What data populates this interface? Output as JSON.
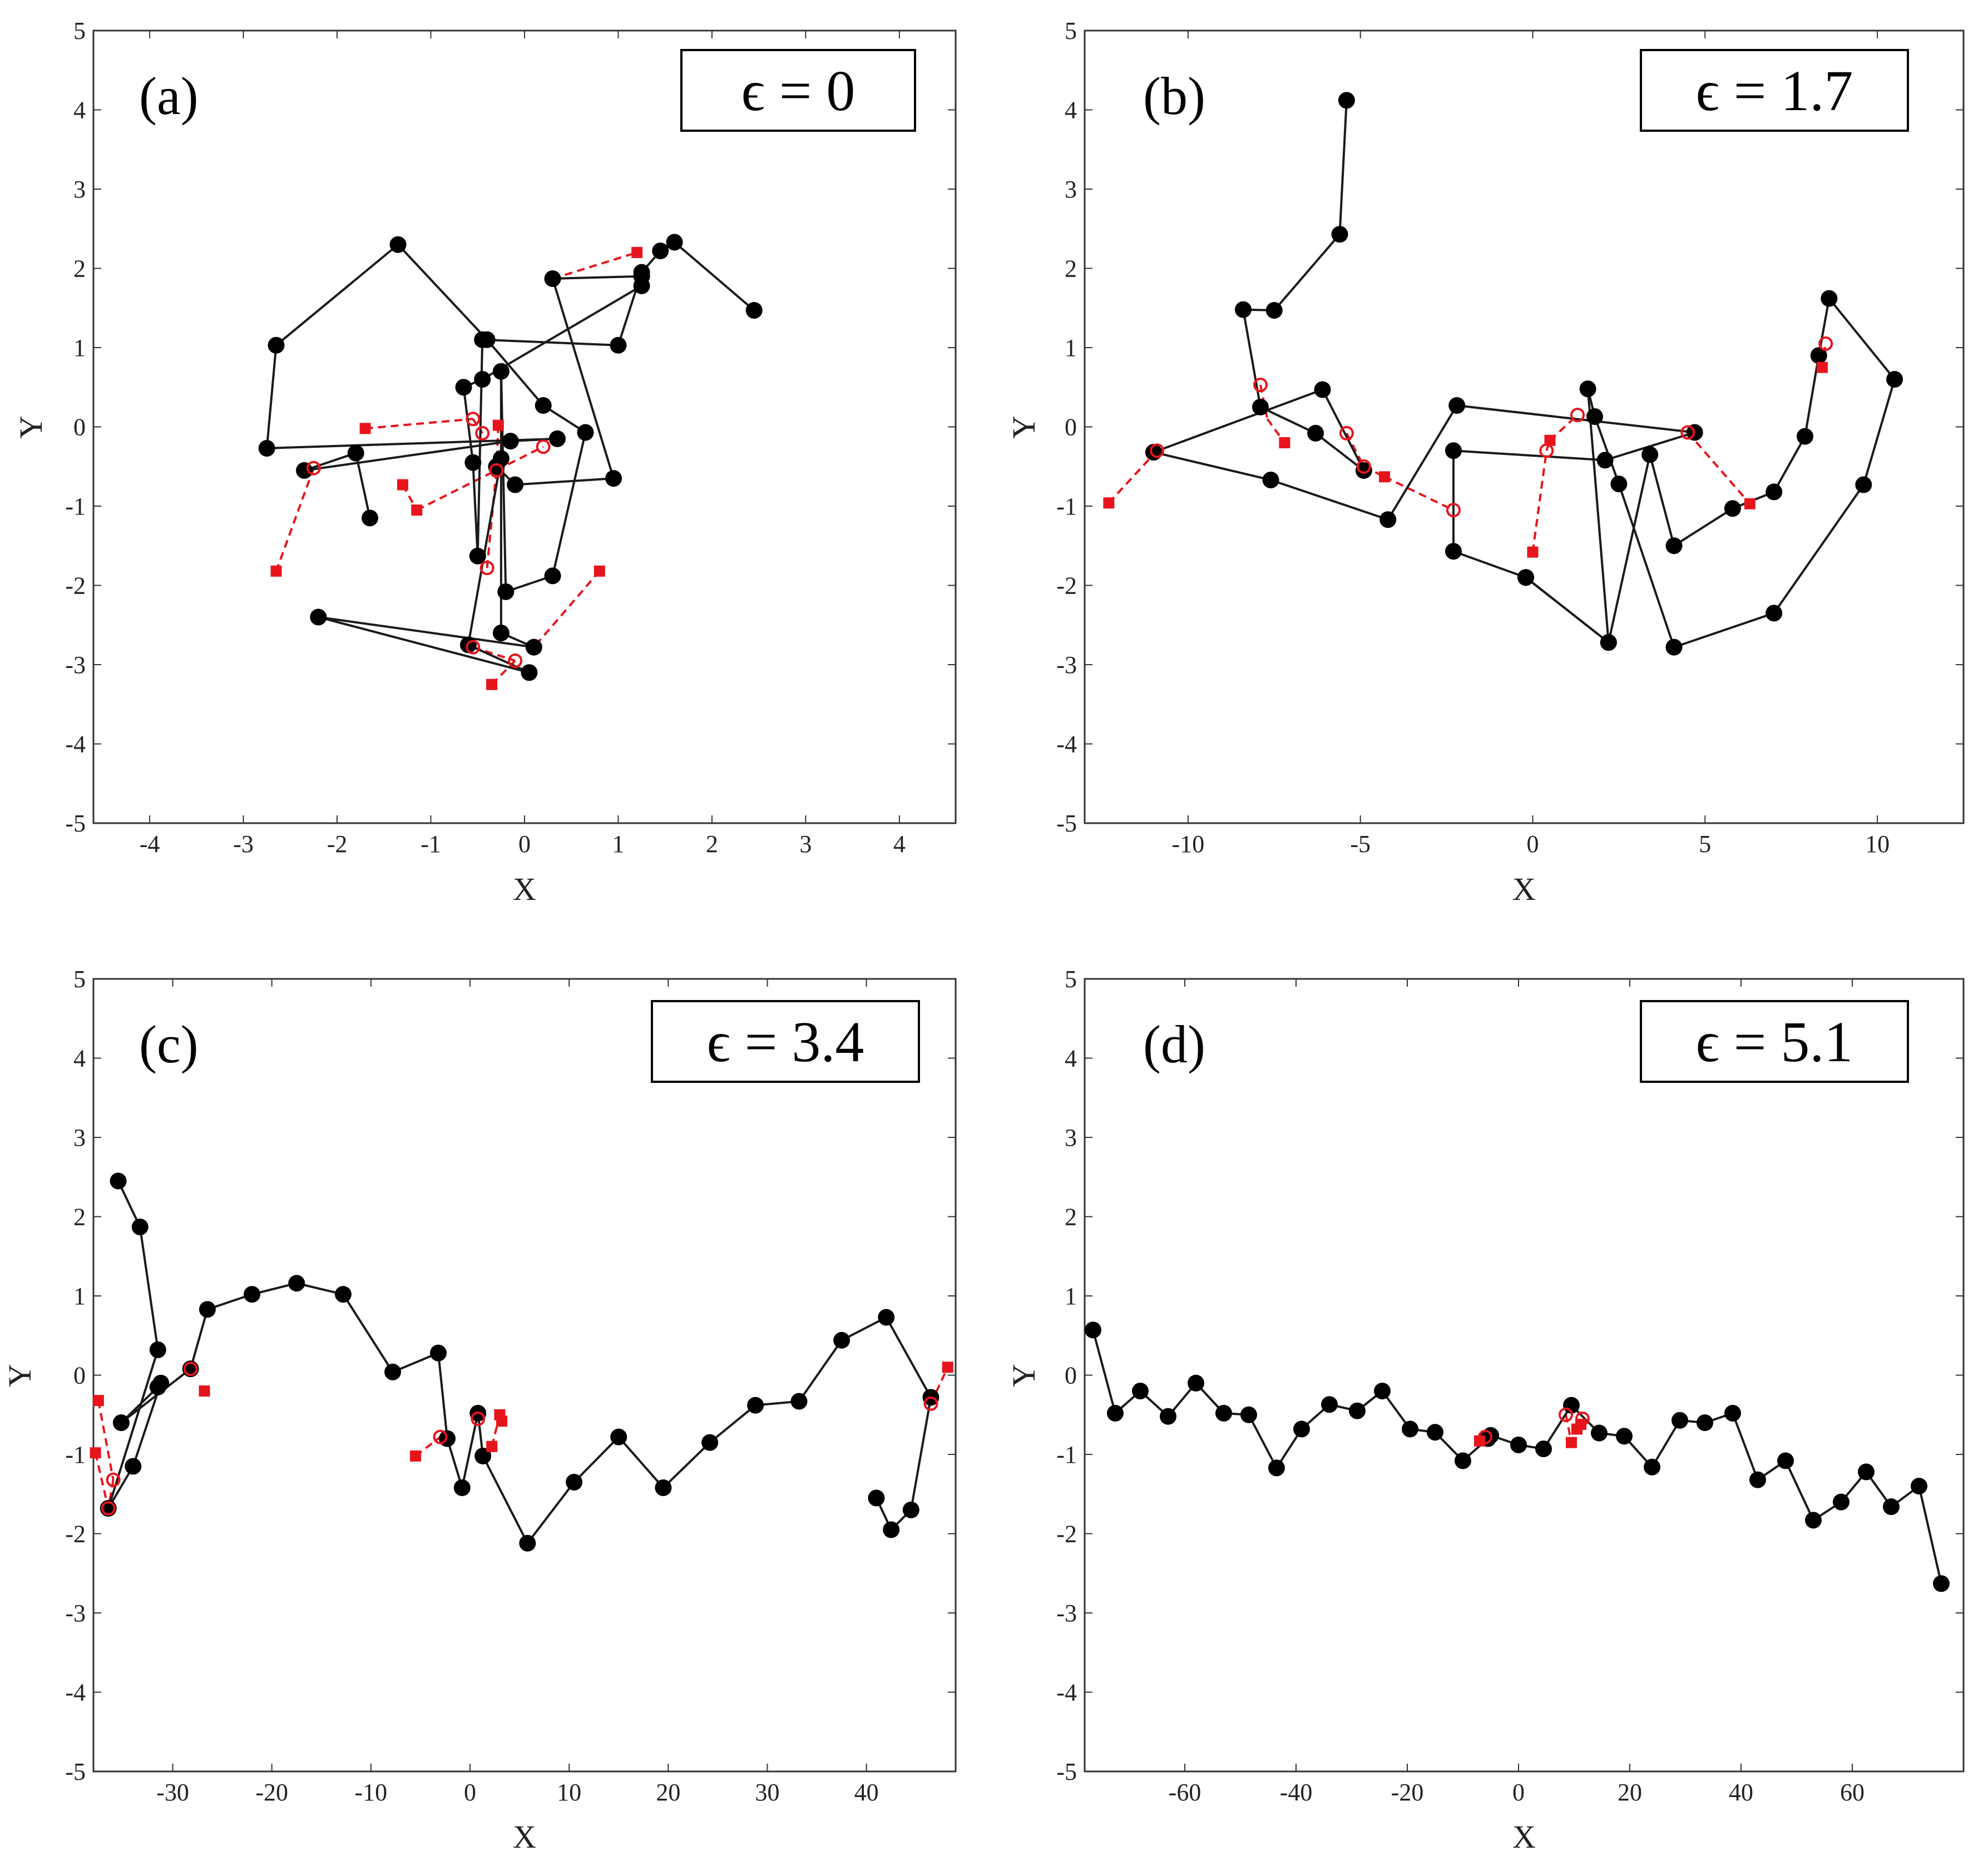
{
  "chart_data": [
    {
      "id": "a",
      "type": "scatter",
      "panel_label": "(a)",
      "epsilon_label": "ϵ = 0",
      "xlabel": "X",
      "ylabel": "Y",
      "xlim": [
        -4.6,
        4.6
      ],
      "ylim": [
        -5,
        5
      ],
      "xticks": [
        -4,
        -3,
        -2,
        -1,
        0,
        1,
        2,
        3,
        4
      ],
      "yticks": [
        -5,
        -4,
        -3,
        -2,
        -1,
        0,
        1,
        2,
        3,
        4,
        5
      ],
      "black_chain": [
        [
          -1.65,
          -1.15
        ],
        [
          -1.8,
          -0.33
        ],
        [
          -2.35,
          -0.55
        ],
        [
          -0.15,
          -0.18
        ],
        [
          0.35,
          -0.15
        ],
        [
          -2.75,
          -0.27
        ],
        [
          -2.65,
          1.03
        ],
        [
          -1.35,
          2.3
        ],
        [
          -0.4,
          1.1
        ],
        [
          0.2,
          0.27
        ],
        [
          0.65,
          -0.07
        ],
        [
          0.3,
          -1.88
        ],
        [
          -0.2,
          -2.08
        ],
        [
          -0.25,
          0.7
        ],
        [
          -0.25,
          -2.6
        ],
        [
          0.1,
          -2.78
        ],
        [
          -2.2,
          -2.4
        ],
        [
          0.05,
          -3.1
        ],
        [
          -0.6,
          -2.75
        ],
        [
          -0.25,
          -0.4
        ],
        [
          -0.3,
          -0.5
        ],
        [
          -0.1,
          -0.73
        ],
        [
          0.95,
          -0.65
        ],
        [
          0.3,
          1.87
        ],
        [
          1.25,
          1.9
        ],
        [
          1.25,
          1.78
        ],
        [
          -0.45,
          0.6
        ],
        [
          -0.65,
          0.5
        ],
        [
          -0.55,
          -0.45
        ],
        [
          -0.5,
          -1.63
        ],
        [
          -0.45,
          1.1
        ],
        [
          1.0,
          1.03
        ],
        [
          1.25,
          1.95
        ],
        [
          1.45,
          2.22
        ],
        [
          1.6,
          2.33
        ],
        [
          2.45,
          1.47
        ]
      ],
      "red_filled": [
        [
          1.2,
          2.2
        ],
        [
          -1.7,
          -0.02
        ],
        [
          -0.28,
          0.02
        ],
        [
          -1.3,
          -0.73
        ],
        [
          -1.15,
          -1.05
        ],
        [
          -2.65,
          -1.82
        ],
        [
          0.8,
          -1.82
        ],
        [
          -0.35,
          -3.25
        ]
      ],
      "red_open": [
        [
          -0.55,
          0.1
        ],
        [
          -0.45,
          -0.08
        ],
        [
          0.2,
          -0.25
        ],
        [
          -2.25,
          -0.52
        ],
        [
          -0.3,
          -0.55
        ],
        [
          -0.4,
          -1.78
        ],
        [
          -0.1,
          -2.95
        ],
        [
          -0.55,
          -2.78
        ]
      ],
      "red_links": [
        [
          [
            0.3,
            1.87
          ],
          [
            1.2,
            2.2
          ]
        ],
        [
          [
            -1.7,
            -0.02
          ],
          [
            -0.55,
            0.1
          ]
        ],
        [
          [
            -0.55,
            0.1
          ],
          [
            -0.45,
            -0.08
          ]
        ],
        [
          [
            -0.28,
            0.02
          ],
          [
            -0.3,
            -0.55
          ]
        ],
        [
          [
            -2.25,
            -0.52
          ],
          [
            -2.65,
            -1.82
          ]
        ],
        [
          [
            -1.3,
            -0.73
          ],
          [
            -1.15,
            -1.05
          ]
        ],
        [
          [
            -1.15,
            -1.05
          ],
          [
            0.2,
            -0.25
          ]
        ],
        [
          [
            -0.4,
            -1.78
          ],
          [
            -0.3,
            -0.55
          ]
        ],
        [
          [
            0.8,
            -1.82
          ],
          [
            0.1,
            -2.78
          ]
        ],
        [
          [
            -0.1,
            -2.95
          ],
          [
            -0.35,
            -3.25
          ]
        ],
        [
          [
            -0.55,
            -2.78
          ],
          [
            -0.1,
            -2.95
          ]
        ]
      ]
    },
    {
      "id": "b",
      "type": "scatter",
      "panel_label": "(b)",
      "epsilon_label": "ϵ = 1.7",
      "xlabel": "X",
      "ylabel": "Y",
      "xlim": [
        -13,
        12.5
      ],
      "ylim": [
        -5,
        5
      ],
      "xticks": [
        -10,
        -5,
        0,
        5,
        10
      ],
      "yticks": [
        -5,
        -4,
        -3,
        -2,
        -1,
        0,
        1,
        2,
        3,
        4,
        5
      ],
      "black_chain": [
        [
          -5.4,
          4.12
        ],
        [
          -5.6,
          2.43
        ],
        [
          -7.5,
          1.47
        ],
        [
          -8.4,
          1.48
        ],
        [
          -7.9,
          0.25
        ],
        [
          -6.3,
          -0.08
        ],
        [
          -4.9,
          -0.55
        ],
        [
          -6.1,
          0.47
        ],
        [
          -11.0,
          -0.32
        ],
        [
          -7.6,
          -0.67
        ],
        [
          -4.2,
          -1.17
        ],
        [
          -2.2,
          0.27
        ],
        [
          4.7,
          -0.07
        ],
        [
          2.1,
          -0.42
        ],
        [
          -2.3,
          -0.3
        ],
        [
          -2.3,
          -1.57
        ],
        [
          -0.2,
          -1.9
        ],
        [
          2.2,
          -2.72
        ],
        [
          1.6,
          0.48
        ],
        [
          1.8,
          0.13
        ],
        [
          2.5,
          -0.72
        ],
        [
          4.1,
          -2.78
        ],
        [
          7.0,
          -2.35
        ],
        [
          9.6,
          -0.73
        ],
        [
          10.5,
          0.6
        ],
        [
          8.6,
          1.62
        ],
        [
          8.3,
          0.9
        ],
        [
          7.9,
          -0.12
        ],
        [
          7.0,
          -0.82
        ],
        [
          5.8,
          -1.03
        ],
        [
          4.1,
          -1.5
        ],
        [
          3.4,
          -0.35
        ],
        [
          2.2,
          -2.72
        ],
        [
          -0.2,
          -1.9
        ]
      ],
      "red_filled": [
        [
          -12.3,
          -0.96
        ],
        [
          -7.2,
          -0.2
        ],
        [
          -4.3,
          -0.63
        ],
        [
          0.0,
          -1.58
        ],
        [
          0.5,
          -0.17
        ],
        [
          6.3,
          -0.97
        ],
        [
          8.4,
          0.75
        ]
      ],
      "red_open": [
        [
          -10.9,
          -0.3
        ],
        [
          -7.9,
          0.53
        ],
        [
          -5.4,
          -0.08
        ],
        [
          -4.9,
          -0.5
        ],
        [
          -2.3,
          -1.05
        ],
        [
          0.4,
          -0.3
        ],
        [
          1.3,
          0.15
        ],
        [
          4.5,
          -0.07
        ],
        [
          8.5,
          1.05
        ]
      ],
      "red_links": [
        [
          [
            -12.3,
            -0.96
          ],
          [
            -10.9,
            -0.3
          ]
        ],
        [
          [
            -7.9,
            0.53
          ],
          [
            -7.7,
            0.1
          ]
        ],
        [
          [
            -7.7,
            0.1
          ],
          [
            -7.2,
            -0.2
          ]
        ],
        [
          [
            -5.4,
            -0.08
          ],
          [
            -4.9,
            -0.5
          ]
        ],
        [
          [
            -4.9,
            -0.5
          ],
          [
            -4.3,
            -0.63
          ]
        ],
        [
          [
            -4.3,
            -0.63
          ],
          [
            -2.3,
            -1.05
          ]
        ],
        [
          [
            0.0,
            -1.58
          ],
          [
            0.4,
            -0.3
          ]
        ],
        [
          [
            0.4,
            -0.3
          ],
          [
            0.5,
            -0.17
          ]
        ],
        [
          [
            0.5,
            -0.17
          ],
          [
            1.3,
            0.15
          ]
        ],
        [
          [
            4.5,
            -0.07
          ],
          [
            6.3,
            -0.97
          ]
        ],
        [
          [
            8.4,
            0.75
          ],
          [
            8.5,
            1.05
          ]
        ]
      ]
    },
    {
      "id": "c",
      "type": "scatter",
      "panel_label": "(c)",
      "epsilon_label": "ϵ = 3.4",
      "xlabel": "X",
      "ylabel": "Y",
      "xlim": [
        -38,
        49
      ],
      "ylim": [
        -5,
        5
      ],
      "xticks": [
        -30,
        -20,
        -10,
        0,
        10,
        20,
        30,
        40
      ],
      "yticks": [
        -5,
        -4,
        -3,
        -2,
        -1,
        0,
        1,
        2,
        3,
        4,
        5
      ],
      "black_chain": [
        [
          -35.5,
          2.45
        ],
        [
          -33.3,
          1.87
        ],
        [
          -31.5,
          0.32
        ],
        [
          -36.5,
          -1.68
        ],
        [
          -34.0,
          -1.15
        ],
        [
          -31.2,
          -0.1
        ],
        [
          -31.5,
          -0.15
        ],
        [
          -35.2,
          -0.6
        ],
        [
          -28.2,
          0.08
        ],
        [
          -26.5,
          0.83
        ],
        [
          -22.0,
          1.02
        ],
        [
          -17.5,
          1.16
        ],
        [
          -12.8,
          1.02
        ],
        [
          -7.8,
          0.04
        ],
        [
          -3.2,
          0.28
        ],
        [
          -2.3,
          -0.8
        ],
        [
          -0.8,
          -1.42
        ],
        [
          0.8,
          -0.48
        ],
        [
          1.3,
          -1.02
        ],
        [
          5.8,
          -2.12
        ],
        [
          10.5,
          -1.35
        ],
        [
          15.0,
          -0.78
        ],
        [
          19.5,
          -1.42
        ],
        [
          24.2,
          -0.85
        ],
        [
          28.8,
          -0.38
        ],
        [
          33.2,
          -0.33
        ],
        [
          37.5,
          0.44
        ],
        [
          42.0,
          0.73
        ],
        [
          46.5,
          -0.28
        ],
        [
          44.5,
          -1.7
        ],
        [
          42.5,
          -1.95
        ],
        [
          41.0,
          -1.55
        ]
      ],
      "red_filled": [
        [
          -37.5,
          -0.32
        ],
        [
          -37.8,
          -0.98
        ],
        [
          -26.8,
          -0.2
        ],
        [
          -5.5,
          -1.02
        ],
        [
          2.2,
          -0.9
        ],
        [
          3.0,
          -0.5
        ],
        [
          3.2,
          -0.58
        ],
        [
          48.2,
          0.1
        ]
      ],
      "red_open": [
        [
          -36.0,
          -1.32
        ],
        [
          -36.5,
          -1.68
        ],
        [
          -28.2,
          0.08
        ],
        [
          -3.0,
          -0.78
        ],
        [
          0.8,
          -0.55
        ],
        [
          46.5,
          -0.36
        ]
      ],
      "red_links": [
        [
          [
            -37.5,
            -0.32
          ],
          [
            -36.0,
            -1.32
          ]
        ],
        [
          [
            -37.8,
            -0.98
          ],
          [
            -36.5,
            -1.68
          ]
        ],
        [
          [
            -36.0,
            -1.32
          ],
          [
            -36.5,
            -1.68
          ]
        ],
        [
          [
            -5.5,
            -1.02
          ],
          [
            -3.0,
            -0.78
          ]
        ],
        [
          [
            2.2,
            -0.9
          ],
          [
            3.0,
            -0.5
          ]
        ],
        [
          [
            46.5,
            -0.36
          ],
          [
            48.2,
            0.1
          ]
        ]
      ]
    },
    {
      "id": "d",
      "type": "scatter",
      "panel_label": "(d)",
      "epsilon_label": "ϵ = 5.1",
      "xlabel": "X",
      "ylabel": "Y",
      "xlim": [
        -78,
        80
      ],
      "ylim": [
        -5,
        5
      ],
      "xticks": [
        -60,
        -40,
        -20,
        0,
        20,
        40,
        60
      ],
      "yticks": [
        -5,
        -4,
        -3,
        -2,
        -1,
        0,
        1,
        2,
        3,
        4,
        5
      ],
      "black_chain": [
        [
          -76.5,
          0.57
        ],
        [
          -72.5,
          -0.48
        ],
        [
          -68.0,
          -0.2
        ],
        [
          -63.0,
          -0.52
        ],
        [
          -58.0,
          -0.1
        ],
        [
          -53.0,
          -0.48
        ],
        [
          -48.5,
          -0.5
        ],
        [
          -43.5,
          -1.17
        ],
        [
          -39.0,
          -0.68
        ],
        [
          -34.0,
          -0.37
        ],
        [
          -29.0,
          -0.45
        ],
        [
          -24.5,
          -0.2
        ],
        [
          -19.5,
          -0.68
        ],
        [
          -15.0,
          -0.72
        ],
        [
          -10.0,
          -1.08
        ],
        [
          -5.5,
          -0.8
        ],
        [
          -5.0,
          -0.76
        ],
        [
          0.0,
          -0.88
        ],
        [
          4.5,
          -0.93
        ],
        [
          9.5,
          -0.38
        ],
        [
          14.5,
          -0.73
        ],
        [
          19.0,
          -0.77
        ],
        [
          24.0,
          -1.16
        ],
        [
          29.0,
          -0.57
        ],
        [
          33.5,
          -0.6
        ],
        [
          38.5,
          -0.48
        ],
        [
          43.0,
          -1.32
        ],
        [
          48.0,
          -1.08
        ],
        [
          53.0,
          -1.83
        ],
        [
          58.0,
          -1.6
        ],
        [
          62.5,
          -1.22
        ],
        [
          67.0,
          -1.66
        ],
        [
          72.0,
          -1.4
        ],
        [
          76.0,
          -2.63
        ]
      ],
      "red_filled": [
        [
          -7.0,
          -0.83
        ],
        [
          9.5,
          -0.85
        ],
        [
          10.5,
          -0.68
        ],
        [
          11.2,
          -0.62
        ]
      ],
      "red_open": [
        [
          -6.0,
          -0.78
        ],
        [
          8.5,
          -0.5
        ],
        [
          11.5,
          -0.55
        ]
      ],
      "red_links": [
        [
          [
            -7.0,
            -0.83
          ],
          [
            -6.0,
            -0.78
          ]
        ],
        [
          [
            8.5,
            -0.5
          ],
          [
            9.5,
            -0.85
          ]
        ],
        [
          [
            10.5,
            -0.68
          ],
          [
            11.5,
            -0.55
          ]
        ]
      ]
    }
  ]
}
